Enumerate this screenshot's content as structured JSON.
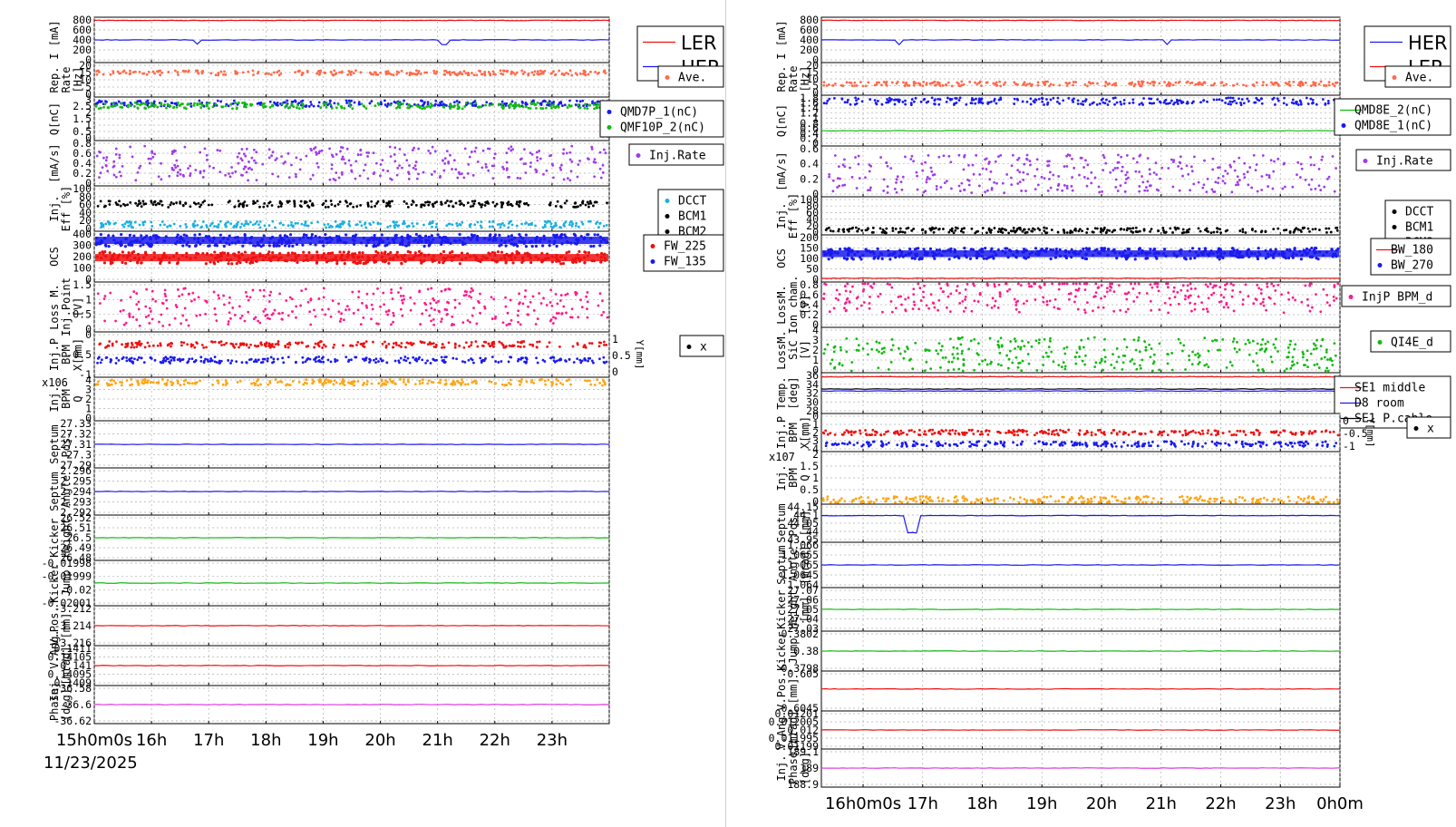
{
  "colors": {
    "red": "#ee1111",
    "blue": "#1a1aee",
    "salmon": "#ff6b4a",
    "green": "#11bb11",
    "purple": "#a03ce8",
    "black": "#000000",
    "cyan": "#1ab0e0",
    "pink": "#ff1a8c",
    "orange": "#ffa514",
    "magenta": "#e03ce0"
  },
  "left": {
    "date_label": "11/23/2025",
    "x_ticks": [
      "15h0m0s",
      "16h",
      "17h",
      "18h",
      "19h",
      "20h",
      "21h",
      "22h",
      "23h"
    ],
    "x_range": [
      15,
      24
    ],
    "panels": [
      {
        "ylabel": [
          "I [mA]"
        ],
        "ticks": [
          "800",
          "600",
          "400",
          "200",
          "0"
        ],
        "series": [
          {
            "name": "LER",
            "level": 0.93,
            "color": "red",
            "style": "line"
          },
          {
            "name": "HER",
            "level": 0.5,
            "color": "blue",
            "style": "line",
            "dips": [
              16.8,
              21.1
            ]
          }
        ],
        "legend": [
          "LER",
          "HER"
        ],
        "legend_style": "big"
      },
      {
        "ylabel": [
          "Rep.",
          "Rate",
          "[Hz]"
        ],
        "ticks": [
          "20",
          "15",
          "10",
          "5",
          "0"
        ],
        "series": [
          {
            "name": "Ave.",
            "level": 0.7,
            "color": "salmon",
            "style": "dots"
          }
        ],
        "legend": [
          "Ave."
        ]
      },
      {
        "ylabel": [
          "Q[nC]"
        ],
        "ticks": [
          "3",
          "2.5",
          "2",
          "1.5",
          "1",
          "0.5",
          "0"
        ],
        "series": [
          {
            "name": "QMD7P_1(nC)",
            "level": 0.85,
            "color": "blue",
            "style": "dots"
          },
          {
            "name": "QMF10P_2(nC)",
            "level": 0.8,
            "color": "green",
            "style": "dots"
          }
        ],
        "legend": [
          "QMD7P_1(nC)",
          "QMF10P_2(nC)"
        ]
      },
      {
        "ylabel": [
          "[mA/s]"
        ],
        "ticks": [
          "0.8",
          "0.6",
          "0.4",
          "0.2",
          "0"
        ],
        "series": [
          {
            "name": "Inj.Rate",
            "level": 0.5,
            "color": "purple",
            "style": "scatter"
          }
        ],
        "legend": [
          "Inj.Rate"
        ]
      },
      {
        "ylabel": [
          "Inj.",
          "Eff [%]"
        ],
        "ticks": [
          "100",
          "80",
          "60",
          "40",
          "20",
          "0"
        ],
        "series": [
          {
            "name": "BCM1",
            "level": 0.6,
            "color": "black",
            "style": "dots"
          },
          {
            "name": "DCCT",
            "level": 0.15,
            "color": "cyan",
            "style": "dots"
          }
        ],
        "legend": [
          "DCCT",
          "BCM1",
          "BCM2"
        ]
      },
      {
        "ylabel": [
          "OCS"
        ],
        "ticks": [
          "400",
          "300",
          "200",
          "100",
          "0"
        ],
        "series": [
          {
            "name": "FW_135",
            "level": 0.82,
            "color": "blue",
            "style": "band"
          },
          {
            "name": "FW_225",
            "level": 0.48,
            "color": "red",
            "style": "band"
          }
        ],
        "legend": [
          "FW_225",
          "FW_135"
        ]
      },
      {
        "ylabel": [
          "Loss M.",
          "Inj.Point",
          "[V]"
        ],
        "ticks": [
          "1.5",
          "1",
          "0.5",
          "0"
        ],
        "series": [
          {
            "name": "pink",
            "level": 0.5,
            "color": "pink",
            "style": "scatter"
          }
        ],
        "legend": []
      },
      {
        "ylabel": [
          "Inj.P",
          "BPM",
          "X[mm]"
        ],
        "ticks": [
          "0",
          "-0.5",
          "-1"
        ],
        "series": [
          {
            "name": "Y",
            "level": 0.72,
            "color": "red",
            "style": "dots"
          },
          {
            "name": "X",
            "level": 0.38,
            "color": "blue",
            "style": "dots"
          }
        ],
        "legend": [
          "x"
        ],
        "right_axis": [
          "1",
          "0.5",
          "0"
        ],
        "right_label": "Y[mm]"
      },
      {
        "ylabel": [
          "Inj.",
          "BPM",
          "Q"
        ],
        "ticks": [
          "4",
          "3",
          "2",
          "1",
          "0"
        ],
        "exponent": "x10^6",
        "series": [
          {
            "name": "Q",
            "level": 0.88,
            "color": "orange",
            "style": "dots"
          }
        ],
        "legend": []
      },
      {
        "ylabel": [
          "Septum",
          "Pos."
        ],
        "ticks": [
          "27.33",
          "27.32",
          "27.31",
          "27.3",
          "27.29"
        ],
        "series": [
          {
            "name": "pos",
            "level": 0.5,
            "color": "blue",
            "style": "line"
          }
        ],
        "legend": []
      },
      {
        "ylabel": [
          "Septum",
          "Angle"
        ],
        "ticks": [
          "2.296",
          "2.295",
          "2.294",
          "2.293",
          "2.292"
        ],
        "series": [
          {
            "name": "angle",
            "level": 0.5,
            "color": "blue",
            "style": "line"
          }
        ],
        "legend": []
      },
      {
        "ylabel": [
          "Kicker",
          "Height"
        ],
        "ticks": [
          "26.52",
          "26.51",
          "26.5",
          "26.49",
          "26.48"
        ],
        "series": [
          {
            "name": "height",
            "level": 0.5,
            "color": "green",
            "style": "line"
          }
        ],
        "legend": []
      },
      {
        "ylabel": [
          "Kicker",
          "Jump"
        ],
        "ticks": [
          "-0.01998",
          "-0.01999",
          "-0.02",
          "-0.02001"
        ],
        "series": [
          {
            "name": "jump",
            "level": 0.5,
            "color": "green",
            "style": "line"
          }
        ],
        "legend": []
      },
      {
        "ylabel": [
          "V.Pos.",
          "[mm]"
        ],
        "ticks": [
          "-3.212",
          "-3.214",
          "-3.216"
        ],
        "series": [
          {
            "name": "vpos",
            "level": 0.5,
            "color": "red",
            "style": "line"
          }
        ],
        "legend": []
      },
      {
        "ylabel": [
          "Inj. V.Ang.",
          "[mrad]"
        ],
        "ticks": [
          "0.1411",
          "0.14105",
          "0.141",
          "0.14095",
          "0.1409"
        ],
        "series": [
          {
            "name": "vang",
            "level": 0.5,
            "color": "red",
            "style": "line"
          }
        ],
        "legend": []
      },
      {
        "ylabel": [
          "Phase",
          "[deg]"
        ],
        "ticks": [
          "-36.58",
          "-36.6",
          "-36.62"
        ],
        "series": [
          {
            "name": "phase",
            "level": 0.5,
            "color": "magenta",
            "style": "line"
          }
        ],
        "legend": []
      }
    ]
  },
  "right": {
    "x_ticks": [
      "16h0m0s",
      "17h",
      "18h",
      "19h",
      "20h",
      "21h",
      "22h",
      "23h",
      "0h0m"
    ],
    "x_range": [
      15.3,
      24.0
    ],
    "panels": [
      {
        "ylabel": [
          "I [mA]"
        ],
        "ticks": [
          "800",
          "600",
          "400",
          "200",
          "0"
        ],
        "series": [
          {
            "name": "LER",
            "level": 0.93,
            "color": "red",
            "style": "line"
          },
          {
            "name": "HER",
            "level": 0.5,
            "color": "blue",
            "style": "line",
            "dips": [
              16.6,
              21.1
            ]
          }
        ],
        "legend": [
          "HER",
          "LER"
        ],
        "legend_style": "big"
      },
      {
        "ylabel": [
          "Rep.",
          "Rate",
          "[Hz]"
        ],
        "ticks": [
          "20",
          "15",
          "10",
          "5",
          "0"
        ],
        "series": [
          {
            "name": "Ave.",
            "level": 0.35,
            "color": "salmon",
            "style": "dots"
          }
        ],
        "legend": [
          "Ave."
        ]
      },
      {
        "ylabel": [
          "Q[nC]"
        ],
        "ticks": [
          "1.8",
          "1.6",
          "1.4",
          "1.2",
          "1",
          "0.8",
          "0.6",
          "0.4",
          "0.2",
          "0"
        ],
        "series": [
          {
            "name": "QMD8E_1(nC)",
            "level": 0.88,
            "color": "blue",
            "style": "dots"
          },
          {
            "name": "QMD8E_2(nC)",
            "level": 0.3,
            "color": "green",
            "style": "line"
          }
        ],
        "legend": [
          "QMD8E_2(nC)",
          "QMD8E_1(nC)"
        ]
      },
      {
        "ylabel": [
          "[mA/s]"
        ],
        "ticks": [
          "0.6",
          "0.4",
          "0.2",
          "0"
        ],
        "series": [
          {
            "name": "Inj.Rate",
            "level": 0.45,
            "color": "purple",
            "style": "scatter"
          }
        ],
        "legend": [
          "Inj.Rate"
        ]
      },
      {
        "ylabel": [
          "Inj.",
          "Eff [%]"
        ],
        "ticks": [
          "100",
          "80",
          "60",
          "40",
          "20",
          "0"
        ],
        "series": [
          {
            "name": "BCM1",
            "level": 0.12,
            "color": "black",
            "style": "dots"
          }
        ],
        "legend": [
          "DCCT",
          "BCM1",
          "BCM2"
        ]
      },
      {
        "ylabel": [
          "OCS"
        ],
        "ticks": [
          "200",
          "150",
          "100",
          "50",
          "0"
        ],
        "series": [
          {
            "name": "BW_270",
            "level": 0.6,
            "color": "blue",
            "style": "band"
          },
          {
            "name": "BW_180",
            "level": 0.08,
            "color": "red",
            "style": "line"
          }
        ],
        "legend": [
          "BW_180",
          "BW_270"
        ]
      },
      {
        "ylabel": [
          "LossM.",
          "Ion cham.",
          "[V]"
        ],
        "ticks": [
          "0.8",
          "0.6",
          "0.4",
          "0.2",
          "0"
        ],
        "series": [
          {
            "name": "InjP BPM_d",
            "level": 0.7,
            "color": "pink",
            "style": "scatter"
          }
        ],
        "legend": [
          "InjP BPM_d"
        ]
      },
      {
        "ylabel": [
          "LossM.",
          "SiC",
          "[V]"
        ],
        "ticks": [
          "4",
          "3",
          "2",
          "1",
          "0"
        ],
        "series": [
          {
            "name": "QI4E_d",
            "level": 0.4,
            "color": "green",
            "style": "scatter"
          }
        ],
        "legend": [
          "QI4E_d"
        ]
      },
      {
        "ylabel": [
          "Temp.",
          "[deg]"
        ],
        "ticks": [
          "36",
          "34",
          "32",
          "30",
          "28"
        ],
        "series": [
          {
            "name": "SE1 middle",
            "level": 0.9,
            "color": "red",
            "style": "line"
          },
          {
            "name": "D8 room",
            "level": 0.55,
            "color": "blue",
            "style": "line"
          },
          {
            "name": "SE1 P.cable",
            "level": 0.6,
            "color": "black",
            "style": "line"
          }
        ],
        "legend": [
          "SE1 middle",
          "D8 room",
          "SE1 P.cable"
        ]
      },
      {
        "ylabel": [
          "Inj.P",
          "BPM",
          "X[mm]"
        ],
        "ticks": [
          "0",
          "-1",
          "-2",
          "-3",
          "-4"
        ],
        "series": [
          {
            "name": "Y",
            "level": 0.5,
            "color": "red",
            "style": "dots"
          },
          {
            "name": "X",
            "level": 0.2,
            "color": "blue",
            "style": "dots"
          }
        ],
        "legend": [
          "x"
        ],
        "right_axis": [
          "0",
          "-0.5",
          "-1"
        ],
        "right_label": "Y[mm]"
      },
      {
        "ylabel": [
          "Inj.",
          "BPM",
          "Q"
        ],
        "ticks": [
          "2",
          "1.5",
          "1",
          "0.5",
          "0"
        ],
        "exponent": "x10^7",
        "series": [
          {
            "name": "Q",
            "level": 0.08,
            "color": "orange",
            "style": "dots"
          }
        ],
        "legend": []
      },
      {
        "ylabel": [
          "Septum",
          "Pos.",
          "[mm]"
        ],
        "ticks": [
          "44.15",
          "44.1",
          "44.05",
          "44",
          "43.95"
        ],
        "series": [
          {
            "name": "pos",
            "level": 0.7,
            "color": "blue",
            "style": "line",
            "spike": 16.8
          }
        ],
        "legend": []
      },
      {
        "ylabel": [
          "Septum",
          "Angle",
          "[mrad]"
        ],
        "ticks": [
          "1.066",
          "1.0655",
          "1.065",
          "1.0645",
          "1.064"
        ],
        "series": [
          {
            "name": "angle",
            "level": 0.5,
            "color": "blue",
            "style": "line"
          }
        ],
        "legend": []
      },
      {
        "ylabel": [
          "Kicker",
          "Height",
          "[mm]"
        ],
        "ticks": [
          "27.07",
          "27.06",
          "27.05",
          "27.04",
          "27.03"
        ],
        "series": [
          {
            "name": "height",
            "level": 0.5,
            "color": "green",
            "style": "line"
          }
        ],
        "legend": []
      },
      {
        "ylabel": [
          "Kicker",
          "Jump"
        ],
        "ticks": [
          "0.3802",
          "0.38",
          "0.3798"
        ],
        "series": [
          {
            "name": "jump",
            "level": 0.5,
            "color": "green",
            "style": "line"
          }
        ],
        "legend": []
      },
      {
        "ylabel": [
          "V.Pos.",
          "[mm]"
        ],
        "ticks": [
          "0.605",
          "0.6045"
        ],
        "series": [
          {
            "name": "vpos",
            "level": 0.55,
            "color": "red",
            "style": "line"
          }
        ],
        "legend": []
      },
      {
        "ylabel": [
          "V.Ang.",
          "[mrad]"
        ],
        "ticks": [
          "0.01201",
          "0.012005",
          "0.012",
          "0.011995",
          "0.01199"
        ],
        "series": [
          {
            "name": "vang",
            "level": 0.5,
            "color": "red",
            "style": "line"
          }
        ],
        "legend": []
      },
      {
        "ylabel": [
          "Inj.",
          "Phase",
          "[deg]"
        ],
        "ticks": [
          "189.1",
          "189",
          "188.9"
        ],
        "series": [
          {
            "name": "phase",
            "level": 0.5,
            "color": "magenta",
            "style": "line"
          }
        ],
        "legend": []
      }
    ]
  },
  "chart_data": [
    {
      "type": "line",
      "title": "",
      "x_ticks": [
        "15h0m0s",
        "16h",
        "17h",
        "18h",
        "19h",
        "20h",
        "21h",
        "22h",
        "23h"
      ],
      "xlabel": "11/23/2025",
      "series": [
        {
          "name": "LER",
          "ylabel": "I [mA]",
          "approx_value": 750
        },
        {
          "name": "HER",
          "ylabel": "I [mA]",
          "approx_value": 400
        },
        {
          "name": "Ave.",
          "ylabel": "Rep. Rate [Hz]",
          "approx_value": 14
        },
        {
          "name": "QMD7P_1(nC)",
          "ylabel": "Q[nC]",
          "approx_value": 2.6
        },
        {
          "name": "QMF10P_2(nC)",
          "ylabel": "Q[nC]",
          "approx_value": 2.4
        },
        {
          "name": "Inj.Rate",
          "ylabel": "[mA/s]",
          "approx_value": 0.4
        },
        {
          "name": "BCM1",
          "ylabel": "Inj. Eff [%]",
          "approx_value": 58
        },
        {
          "name": "DCCT",
          "ylabel": "Inj. Eff [%]",
          "approx_value": 15
        },
        {
          "name": "FW_135",
          "ylabel": "OCS",
          "approx_value": 330
        },
        {
          "name": "FW_225",
          "ylabel": "OCS",
          "approx_value": 190
        }
      ]
    },
    {
      "type": "line",
      "title": "",
      "x_ticks": [
        "16h0m0s",
        "17h",
        "18h",
        "19h",
        "20h",
        "21h",
        "22h",
        "23h",
        "0h0m"
      ],
      "series": [
        {
          "name": "LER",
          "ylabel": "I [mA]",
          "approx_value": 750
        },
        {
          "name": "HER",
          "ylabel": "I [mA]",
          "approx_value": 400
        },
        {
          "name": "Ave.",
          "ylabel": "Rep. Rate [Hz]",
          "approx_value": 7
        },
        {
          "name": "QMD8E_1(nC)",
          "ylabel": "Q[nC]",
          "approx_value": 1.6
        },
        {
          "name": "QMD8E_2(nC)",
          "ylabel": "Q[nC]",
          "approx_value": 0.55
        },
        {
          "name": "Inj.Rate",
          "ylabel": "[mA/s]",
          "approx_value": 0.3
        },
        {
          "name": "BW_270",
          "ylabel": "OCS",
          "approx_value": 120
        },
        {
          "name": "InjP BPM_d",
          "ylabel": "LossM. Ion cham. [V]",
          "approx_value": 0.55
        },
        {
          "name": "QI4E_d",
          "ylabel": "LossM. SiC [V]",
          "approx_value": 1.5
        },
        {
          "name": "SE1 middle",
          "ylabel": "Temp. [deg]",
          "approx_value": 34
        },
        {
          "name": "D8 room",
          "ylabel": "Temp. [deg]",
          "approx_value": 30
        }
      ]
    }
  ]
}
